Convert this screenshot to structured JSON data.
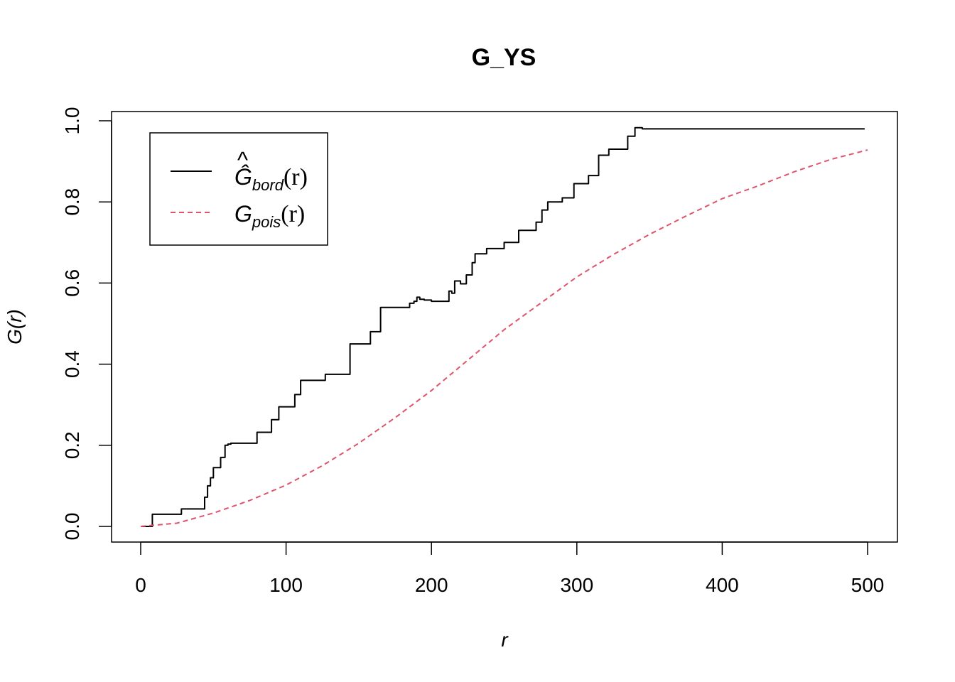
{
  "chart_data": {
    "type": "line",
    "title": "G_YS",
    "xlabel": "r",
    "ylabel": "G(r)",
    "xlim": [
      0,
      500
    ],
    "ylim": [
      0,
      1
    ],
    "xticks": [
      "0",
      "100",
      "200",
      "300",
      "400",
      "500"
    ],
    "yticks": [
      "0.0",
      "0.2",
      "0.4",
      "0.6",
      "0.8",
      "1.0"
    ],
    "legend_position": "top-left",
    "series": [
      {
        "name": "Ĝbord(r)",
        "name_main": "Ĝ",
        "name_sub": "bord",
        "name_arg": "(r)",
        "color": "#000000",
        "style": "solid",
        "step": true,
        "x": [
          0,
          5,
          8,
          27,
          28,
          43,
          44,
          46,
          48,
          50,
          52,
          55,
          58,
          60,
          62,
          76,
          80,
          88,
          90,
          93,
          95,
          104,
          106,
          108,
          110,
          125,
          127,
          142,
          144,
          147,
          150,
          158,
          160,
          165,
          168,
          185,
          188,
          190,
          192,
          195,
          200,
          210,
          212,
          214,
          216,
          220,
          224,
          228,
          230,
          234,
          238,
          246,
          250,
          256,
          260,
          270,
          272,
          276,
          280,
          285,
          290,
          296,
          298,
          305,
          308,
          310,
          315,
          318,
          322,
          330,
          335,
          340,
          343,
          345,
          350,
          490,
          498
        ],
        "y": [
          0,
          0,
          0.03,
          0.03,
          0.043,
          0.043,
          0.072,
          0.1,
          0.12,
          0.145,
          0.145,
          0.17,
          0.2,
          0.203,
          0.205,
          0.205,
          0.232,
          0.232,
          0.263,
          0.263,
          0.295,
          0.295,
          0.325,
          0.325,
          0.36,
          0.36,
          0.375,
          0.375,
          0.45,
          0.45,
          0.45,
          0.48,
          0.48,
          0.54,
          0.54,
          0.55,
          0.555,
          0.565,
          0.56,
          0.558,
          0.555,
          0.555,
          0.58,
          0.575,
          0.605,
          0.598,
          0.62,
          0.65,
          0.672,
          0.672,
          0.685,
          0.685,
          0.7,
          0.7,
          0.73,
          0.73,
          0.75,
          0.78,
          0.8,
          0.8,
          0.81,
          0.81,
          0.845,
          0.845,
          0.865,
          0.865,
          0.915,
          0.915,
          0.93,
          0.93,
          0.962,
          0.983,
          0.983,
          0.98,
          0.98,
          0.98,
          0.98
        ]
      },
      {
        "name": "Gpois(r)",
        "name_main": "G",
        "name_sub": "pois",
        "name_arg": "(r)",
        "color": "#DF536B",
        "style": "dashed",
        "step": false,
        "x": [
          0,
          25,
          50,
          75,
          100,
          125,
          150,
          175,
          200,
          225,
          250,
          275,
          300,
          325,
          350,
          375,
          400,
          425,
          450,
          475,
          500
        ],
        "y": [
          0,
          0.008,
          0.033,
          0.064,
          0.102,
          0.15,
          0.205,
          0.268,
          0.335,
          0.41,
          0.485,
          0.55,
          0.615,
          0.67,
          0.72,
          0.765,
          0.808,
          0.84,
          0.875,
          0.905,
          0.928
        ]
      }
    ]
  }
}
